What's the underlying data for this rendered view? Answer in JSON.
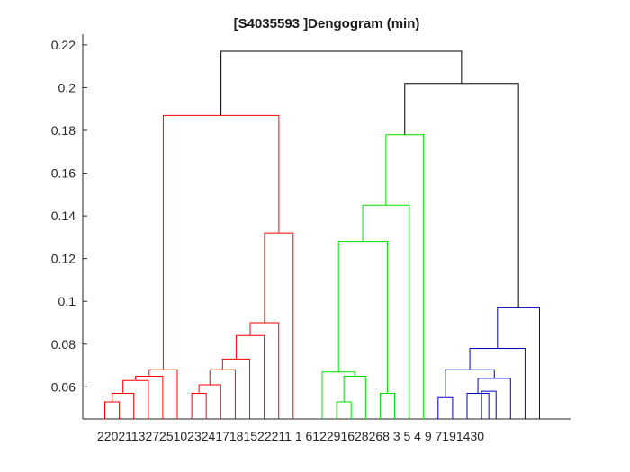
{
  "chart_data": {
    "type": "dendrogram",
    "title": "[S4035593 ]Dengogram (min)",
    "xlabel": "",
    "ylabel": "",
    "ylim": [
      0.045,
      0.225
    ],
    "yticks": [
      0.06,
      0.08,
      0.1,
      0.12,
      0.14,
      0.16,
      0.18,
      0.2,
      0.22
    ],
    "ytick_labels": [
      "0.06",
      "0.08",
      "0.1",
      "0.12",
      "0.14",
      "0.16",
      "0.18",
      "0.2",
      "0.22"
    ],
    "grid": false,
    "colors": {
      "red": "#ff0000",
      "green": "#00e000",
      "blue": "#0000cc",
      "black": "#000000"
    },
    "leaf_labels_line": "2202113272510232417181522211 1 612291628268 3 5 4 9 7191430",
    "leaves": [
      "2",
      "20",
      "21",
      "13",
      "27",
      "25",
      "10",
      "23",
      "24",
      "17",
      "18",
      "15",
      "22",
      "11",
      "1",
      "6",
      "12",
      "29",
      "16",
      "28",
      "26",
      "8",
      "3",
      "5",
      "4",
      "9",
      "7",
      "19",
      "14",
      "30"
    ],
    "links": [
      {
        "left": 1,
        "right": 2,
        "height": 0.053,
        "color": "red"
      },
      {
        "left": 3,
        "right": 1.5,
        "height": 0.057,
        "color": "red"
      },
      {
        "left": 4,
        "right": 2.25,
        "height": 0.063,
        "color": "red"
      },
      {
        "left": 5,
        "right": 3.125,
        "height": 0.065,
        "color": "red"
      },
      {
        "left": 6,
        "right": 4.0625,
        "height": 0.068,
        "color": "red"
      },
      {
        "left": 7,
        "right": 8,
        "height": 0.057,
        "color": "red"
      },
      {
        "left": 9,
        "right": 7.5,
        "height": 0.061,
        "color": "red"
      },
      {
        "left": 10,
        "right": 8.25,
        "height": 0.068,
        "color": "red"
      },
      {
        "left": 11,
        "right": 9.125,
        "height": 0.073,
        "color": "red"
      },
      {
        "left": 12,
        "right": 10.0625,
        "height": 0.084,
        "color": "red"
      },
      {
        "left": 13,
        "right": 11.03,
        "height": 0.09,
        "color": "red"
      },
      {
        "left": 14,
        "right": 12.02,
        "height": 0.132,
        "color": "red"
      },
      {
        "left": 5.03,
        "right": 13.01,
        "height": 0.187,
        "color": "red"
      },
      {
        "left": 17,
        "right": 18,
        "height": 0.053,
        "color": "green"
      },
      {
        "left": 19,
        "right": 17.5,
        "height": 0.065,
        "color": "green"
      },
      {
        "left": 16,
        "right": 18.25,
        "height": 0.067,
        "color": "green"
      },
      {
        "left": 20,
        "right": 21,
        "height": 0.057,
        "color": "green"
      },
      {
        "left": 17.13,
        "right": 20.5,
        "height": 0.128,
        "color": "green"
      },
      {
        "left": 22,
        "right": 18.8,
        "height": 0.145,
        "color": "green"
      },
      {
        "left": 23,
        "right": 20.4,
        "height": 0.178,
        "color": "green"
      },
      {
        "left": 24,
        "right": 25,
        "height": 0.055,
        "color": "blue"
      },
      {
        "left": 27,
        "right": 28,
        "height": 0.058,
        "color": "blue"
      },
      {
        "left": 26,
        "right": 27.5,
        "height": 0.057,
        "color": "blue"
      },
      {
        "left": 29,
        "right": 26.75,
        "height": 0.064,
        "color": "blue"
      },
      {
        "left": 24.5,
        "right": 27.88,
        "height": 0.068,
        "color": "blue"
      },
      {
        "left": 30,
        "right": 26.19,
        "height": 0.078,
        "color": "blue"
      },
      {
        "left": 31,
        "right": 28.1,
        "height": 0.097,
        "color": "blue"
      },
      {
        "left": 21.7,
        "right": 29.55,
        "height": 0.202,
        "color": "black"
      },
      {
        "left": 9.02,
        "right": 25.62,
        "height": 0.217,
        "color": "black"
      }
    ]
  }
}
